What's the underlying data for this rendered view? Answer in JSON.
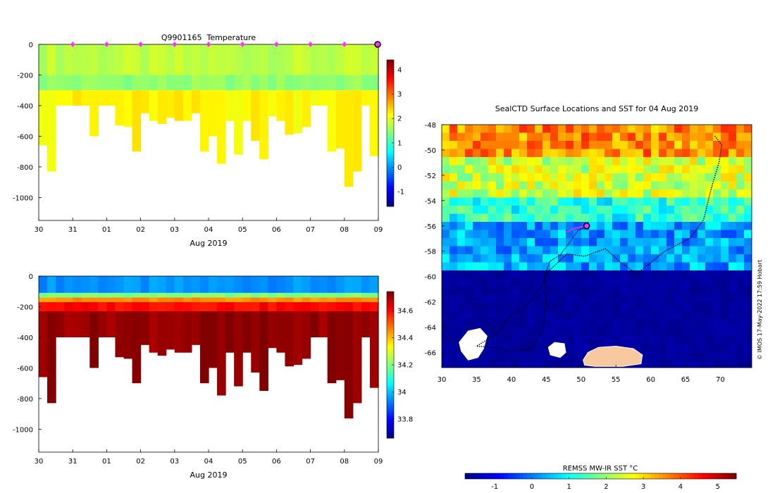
{
  "chart_data": [
    {
      "type": "heatmap",
      "title": "Q9901165  Temperature",
      "xlabel": "Aug 2019",
      "ylabel": "",
      "x_ticks": [
        "30",
        "31",
        "01",
        "02",
        "03",
        "04",
        "05",
        "06",
        "07",
        "08",
        "09"
      ],
      "xlim": [
        0,
        10
      ],
      "ylim": [
        -1150,
        0
      ],
      "y_ticks": [
        0,
        -200,
        -400,
        -600,
        -800,
        -1000
      ],
      "colorbar": {
        "ticks": [
          -1,
          0,
          1,
          2,
          3,
          4
        ],
        "range": [
          -1.6,
          4.4
        ]
      },
      "profile_markers_day": [
        1,
        2,
        3,
        4,
        5,
        6,
        7,
        8,
        9
      ],
      "current_marker_day": 10,
      "profiles": {
        "max_depth": [
          660,
          830,
          400,
          400,
          400,
          400,
          600,
          400,
          400,
          530,
          540,
          700,
          450,
          500,
          520,
          480,
          500,
          500,
          450,
          700,
          600,
          780,
          500,
          720,
          500,
          630,
          750,
          470,
          500,
          590,
          580,
          540,
          400,
          400,
          700,
          680,
          930,
          830,
          400,
          730
        ],
        "layers": [
          {
            "depth": 200,
            "value": 1.75
          },
          {
            "depth": 300,
            "value": 1.5
          },
          {
            "depth": 1200,
            "value": 2.2
          }
        ],
        "surface_value": 1.6
      }
    },
    {
      "type": "heatmap",
      "title": "",
      "xlabel": "Aug 2019",
      "ylabel": "",
      "x_ticks": [
        "30",
        "31",
        "01",
        "02",
        "03",
        "04",
        "05",
        "06",
        "07",
        "08",
        "09"
      ],
      "xlim": [
        0,
        10
      ],
      "ylim": [
        -1150,
        0
      ],
      "y_ticks": [
        0,
        -200,
        -400,
        -600,
        -800,
        -1000
      ],
      "colorbar": {
        "ticks": [
          33.8,
          34,
          34.2,
          34.4,
          34.6
        ],
        "range": [
          33.66,
          34.74
        ]
      },
      "profiles": {
        "max_depth": [
          660,
          830,
          400,
          400,
          400,
          400,
          600,
          400,
          400,
          530,
          540,
          700,
          450,
          500,
          520,
          480,
          500,
          500,
          450,
          700,
          600,
          780,
          500,
          720,
          500,
          630,
          750,
          470,
          500,
          590,
          580,
          540,
          400,
          400,
          700,
          680,
          930,
          830,
          400,
          730
        ],
        "layers": [
          {
            "depth": 110,
            "value": 33.95
          },
          {
            "depth": 140,
            "value": 34.2
          },
          {
            "depth": 170,
            "value": 34.45
          },
          {
            "depth": 230,
            "value": 34.6
          },
          {
            "depth": 1200,
            "value": 34.72
          }
        ]
      }
    },
    {
      "type": "heatmap",
      "title": "SealCTD Surface Locations and SST for 04 Aug 2019",
      "xlabel": "",
      "ylabel": "",
      "xlim": [
        30,
        74.5
      ],
      "ylim": [
        -67.2,
        -48
      ],
      "x_ticks": [
        30,
        35,
        40,
        45,
        50,
        55,
        60,
        65,
        70
      ],
      "y_ticks": [
        -48,
        -50,
        -52,
        -54,
        -56,
        -58,
        -60,
        -62,
        -64,
        -66
      ],
      "colorbar": {
        "label": "REMSS MW-IR SST °C",
        "ticks": [
          -1,
          0,
          1,
          2,
          3,
          4,
          5
        ],
        "range": [
          -1.8,
          5.5
        ]
      },
      "sst_bands": [
        {
          "lat_top": -48,
          "value": 3.6
        },
        {
          "lat_top": -50.5,
          "value": 2.4
        },
        {
          "lat_top": -53.5,
          "value": 1.2
        },
        {
          "lat_top": -55.5,
          "value": 0.3
        },
        {
          "lat_top": -59.5,
          "value": -1.6
        }
      ],
      "track": [
        [
          69.2,
          -48.9
        ],
        [
          70.2,
          -49.6
        ],
        [
          69.8,
          -51.0
        ],
        [
          68.7,
          -53.0
        ],
        [
          67.6,
          -55.5
        ],
        [
          65.6,
          -57.0
        ],
        [
          62.0,
          -58.0
        ],
        [
          58.0,
          -59.8
        ],
        [
          55.5,
          -58.8
        ],
        [
          53.5,
          -57.8
        ],
        [
          50.5,
          -58.4
        ],
        [
          48.0,
          -58.2
        ],
        [
          45.5,
          -59.5
        ],
        [
          44.0,
          -61.0
        ],
        [
          42.0,
          -62.5
        ],
        [
          40.0,
          -63.0
        ],
        [
          38.0,
          -64.5
        ],
        [
          35.0,
          -65.5
        ],
        [
          37.0,
          -65.6
        ],
        [
          40.0,
          -65.9
        ],
        [
          43.0,
          -65.7
        ],
        [
          44.5,
          -64.2
        ],
        [
          45.0,
          -62.0
        ],
        [
          44.8,
          -60.0
        ],
        [
          45.5,
          -58.8
        ],
        [
          47.0,
          -58.3
        ],
        [
          48.5,
          -57.2
        ],
        [
          49.5,
          -56.4
        ],
        [
          50.8,
          -56.0
        ]
      ],
      "recent_track": [
        [
          48.0,
          -56.5
        ],
        [
          49.0,
          -56.2
        ],
        [
          50.0,
          -56.1
        ],
        [
          50.8,
          -56.0
        ]
      ],
      "current_position": [
        50.8,
        -56.0
      ],
      "land": [
        {
          "name": "antarctica-coast",
          "points": [
            [
              50.3,
              -66.6
            ],
            [
              51.0,
              -66.0
            ],
            [
              52.5,
              -65.6
            ],
            [
              55.0,
              -65.5
            ],
            [
              57.5,
              -65.7
            ],
            [
              58.8,
              -66.2
            ],
            [
              58.6,
              -66.9
            ],
            [
              56.0,
              -67.1
            ],
            [
              52.0,
              -67.1
            ],
            [
              50.5,
              -67.0
            ]
          ]
        }
      ],
      "ice": [
        {
          "name": "ice-west",
          "points": [
            [
              32.5,
              -65.2
            ],
            [
              33.8,
              -64.3
            ],
            [
              35.5,
              -64.1
            ],
            [
              36.5,
              -64.7
            ],
            [
              36.0,
              -65.7
            ],
            [
              35.2,
              -66.4
            ],
            [
              33.8,
              -66.6
            ],
            [
              32.8,
              -65.9
            ]
          ]
        },
        {
          "name": "ice-center",
          "points": [
            [
              45.3,
              -65.6
            ],
            [
              46.2,
              -65.2
            ],
            [
              47.6,
              -65.3
            ],
            [
              47.8,
              -66.0
            ],
            [
              47.0,
              -66.4
            ],
            [
              45.6,
              -66.2
            ]
          ]
        }
      ],
      "copyright": "© IMOS 17-May-2022 17:59 Hobart"
    }
  ]
}
